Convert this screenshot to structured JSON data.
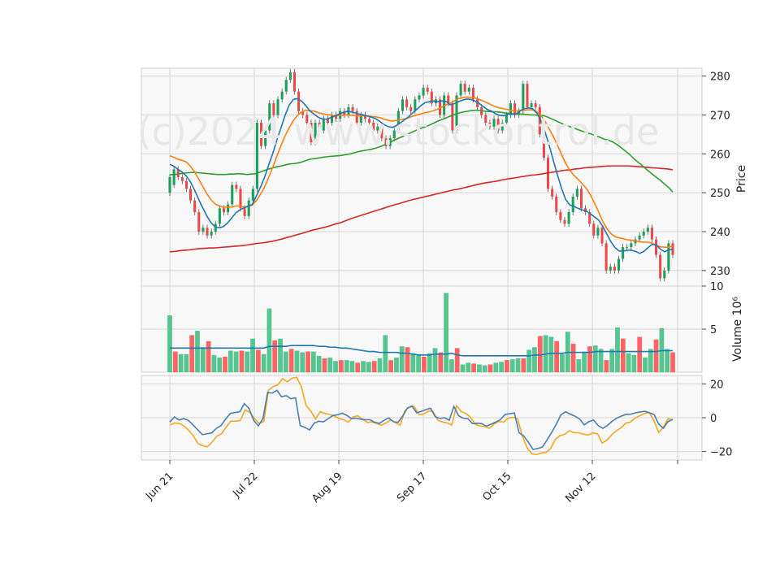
{
  "chart_data": {
    "type": "candlestick",
    "watermark": "(c)2024 www.stockontrol.de",
    "x_tick_labels": [
      "Jun 21",
      "Jul 22",
      "Aug 19",
      "Sep 17",
      "Oct 15",
      "Nov 12"
    ],
    "price_panel": {
      "ylabel": "Price",
      "ylim": [
        226,
        282
      ],
      "yticks": [
        230,
        240,
        250,
        260,
        270,
        280
      ],
      "candles": [
        [
          250,
          254
        ],
        [
          252,
          256
        ],
        [
          256,
          254
        ],
        [
          254,
          253
        ],
        [
          253,
          251
        ],
        [
          251,
          248
        ],
        [
          248,
          245
        ],
        [
          245,
          240
        ],
        [
          240,
          241
        ],
        [
          241,
          239
        ],
        [
          239,
          240
        ],
        [
          240,
          242
        ],
        [
          242,
          246
        ],
        [
          246,
          245
        ],
        [
          245,
          247
        ],
        [
          247,
          252
        ],
        [
          252,
          251
        ],
        [
          251,
          246
        ],
        [
          246,
          244
        ],
        [
          244,
          248
        ],
        [
          248,
          251
        ],
        [
          251,
          268
        ],
        [
          268,
          262
        ],
        [
          262,
          266
        ],
        [
          266,
          273
        ],
        [
          273,
          270
        ],
        [
          270,
          274
        ],
        [
          274,
          276
        ],
        [
          276,
          279
        ],
        [
          279,
          281
        ],
        [
          281,
          276
        ],
        [
          276,
          271
        ],
        [
          271,
          270
        ],
        [
          270,
          268
        ],
        [
          268,
          263
        ],
        [
          263,
          268
        ],
        [
          268,
          266
        ],
        [
          266,
          269
        ],
        [
          269,
          268
        ],
        [
          268,
          270
        ],
        [
          270,
          269
        ],
        [
          269,
          271
        ],
        [
          271,
          270
        ],
        [
          270,
          272
        ],
        [
          272,
          271
        ],
        [
          271,
          268
        ],
        [
          268,
          270
        ],
        [
          270,
          269
        ],
        [
          269,
          268
        ],
        [
          268,
          266
        ],
        [
          266,
          267
        ],
        [
          267,
          264
        ],
        [
          264,
          262
        ],
        [
          262,
          264
        ],
        [
          264,
          266
        ],
        [
          266,
          271
        ],
        [
          271,
          274
        ],
        [
          274,
          272
        ],
        [
          272,
          271
        ],
        [
          271,
          274
        ],
        [
          274,
          275
        ],
        [
          275,
          277
        ],
        [
          277,
          276
        ],
        [
          276,
          273
        ],
        [
          273,
          274
        ],
        [
          274,
          270
        ],
        [
          270,
          275
        ],
        [
          275,
          273
        ],
        [
          273,
          266
        ],
        [
          266,
          275
        ],
        [
          275,
          278
        ],
        [
          278,
          276
        ],
        [
          276,
          277
        ],
        [
          277,
          274
        ],
        [
          274,
          272
        ],
        [
          272,
          270
        ],
        [
          270,
          268
        ],
        [
          268,
          267
        ],
        [
          267,
          269
        ],
        [
          269,
          266
        ],
        [
          266,
          268
        ],
        [
          268,
          270
        ],
        [
          270,
          273
        ],
        [
          273,
          270
        ],
        [
          270,
          271
        ],
        [
          271,
          278
        ],
        [
          278,
          272
        ],
        [
          272,
          273
        ],
        [
          273,
          272
        ],
        [
          272,
          265
        ],
        [
          265,
          259
        ],
        [
          259,
          251
        ],
        [
          251,
          249
        ],
        [
          249,
          245
        ],
        [
          245,
          243
        ],
        [
          243,
          242
        ],
        [
          242,
          245
        ],
        [
          245,
          249
        ],
        [
          249,
          251
        ],
        [
          251,
          246
        ],
        [
          246,
          245
        ],
        [
          245,
          242
        ],
        [
          242,
          239
        ],
        [
          239,
          241
        ],
        [
          241,
          237
        ],
        [
          237,
          230
        ],
        [
          230,
          231
        ],
        [
          231,
          230
        ],
        [
          230,
          233
        ],
        [
          233,
          236
        ],
        [
          236,
          236
        ],
        [
          236,
          237
        ],
        [
          237,
          238
        ],
        [
          238,
          239
        ],
        [
          239,
          240
        ],
        [
          240,
          241
        ],
        [
          241,
          238
        ],
        [
          238,
          234
        ],
        [
          234,
          228
        ],
        [
          228,
          230
        ],
        [
          230,
          237
        ],
        [
          237,
          234
        ]
      ],
      "ma_blue": [
        257.3,
        256.8,
        256.0,
        255.3,
        254.3,
        252.8,
        250.7,
        248.3,
        246.1,
        244.0,
        242.3,
        241.2,
        241.0,
        241.3,
        242.2,
        243.5,
        244.8,
        245.6,
        246.1,
        246.5,
        247.0,
        249.2,
        251.4,
        254.0,
        257.2,
        260.2,
        263.6,
        266.8,
        270.0,
        272.6,
        274.0,
        274.2,
        273.5,
        272.4,
        271.0,
        270.2,
        269.4,
        269.0,
        268.9,
        269.3,
        269.7,
        270.2,
        270.6,
        270.9,
        270.8,
        270.5,
        270.2,
        270.0,
        269.7,
        269.4,
        269.0,
        268.3,
        267.5,
        267.0,
        266.8,
        267.3,
        268.0,
        268.8,
        269.6,
        270.6,
        271.5,
        272.5,
        273.2,
        273.4,
        273.6,
        273.4,
        273.6,
        273.5,
        272.6,
        272.9,
        273.4,
        273.8,
        274.1,
        274.0,
        273.6,
        273.0,
        272.2,
        271.4,
        271.0,
        270.3,
        269.9,
        269.8,
        270.2,
        270.2,
        270.2,
        271.1,
        271.6,
        271.8,
        271.6,
        270.5,
        268.6,
        265.7,
        262.3,
        258.4,
        254.7,
        251.2,
        248.3,
        246.9,
        246.5,
        246.0,
        245.6,
        245.3,
        244.6,
        243.8,
        243.0,
        241.4,
        239.4,
        237.4,
        235.9,
        235.0,
        235.0,
        235.2,
        235.2,
        234.9,
        234.4,
        234.9,
        235.9,
        236.7,
        236.6,
        235.5,
        234.8,
        235.3,
        235.5
      ],
      "ma_orange": [
        259.5,
        259.1,
        258.6,
        258.3,
        257.9,
        256.8,
        255.4,
        253.5,
        251.6,
        249.7,
        248.2,
        247.1,
        246.6,
        246.3,
        246.3,
        246.3,
        246.6,
        246.6,
        246.3,
        246.5,
        246.8,
        248.0,
        249.6,
        251.5,
        254.0,
        256.6,
        259.5,
        262.2,
        264.7,
        266.8,
        268.6,
        269.9,
        270.8,
        271.2,
        271.1,
        271.0,
        270.6,
        270.3,
        270.1,
        270.0,
        269.8,
        269.9,
        269.9,
        270.0,
        269.9,
        269.9,
        269.8,
        269.8,
        269.7,
        269.6,
        269.5,
        269.3,
        268.9,
        268.6,
        268.4,
        268.6,
        268.8,
        269.0,
        269.3,
        269.7,
        270.0,
        270.3,
        270.6,
        270.8,
        271.1,
        271.5,
        272.0,
        272.6,
        273.0,
        273.6,
        274.2,
        274.4,
        274.6,
        274.5,
        274.4,
        274.0,
        273.6,
        273.1,
        272.6,
        272.1,
        271.8,
        271.6,
        271.4,
        271.1,
        271.0,
        271.1,
        271.2,
        271.3,
        271.3,
        270.8,
        269.9,
        268.4,
        266.5,
        264.5,
        262.3,
        259.9,
        257.6,
        255.8,
        254.5,
        253.5,
        252.3,
        251.2,
        249.5,
        247.4,
        245.1,
        242.7,
        240.8,
        239.5,
        238.7,
        238.4,
        238.2,
        237.9,
        237.8,
        237.6,
        237.4,
        237.3,
        237.3,
        237.0,
        236.5,
        236.1,
        236.0,
        236.0,
        236.3
      ],
      "ma_green": [
        254.6,
        254.7,
        254.8,
        255.0,
        255.1,
        255.2,
        255.2,
        255.1,
        255.0,
        254.9,
        254.8,
        254.7,
        254.7,
        254.7,
        254.8,
        254.8,
        254.9,
        254.8,
        254.7,
        254.8,
        254.9,
        255.3,
        255.7,
        256.1,
        256.4,
        256.7,
        256.9,
        257.2,
        257.4,
        257.5,
        257.7,
        258.0,
        258.4,
        258.7,
        258.8,
        259.0,
        259.2,
        259.3,
        259.4,
        259.5,
        259.6,
        259.8,
        260.0,
        260.3,
        260.6,
        260.8,
        261.0,
        261.2,
        261.5,
        261.9,
        262.3,
        262.8,
        263.4,
        263.9,
        264.4,
        264.9,
        265.4,
        265.9,
        266.4,
        266.8,
        267.2,
        267.7,
        268.2,
        268.7,
        269.1,
        269.6,
        270.0,
        270.4,
        270.7,
        270.9,
        271.1,
        271.2,
        271.2,
        271.0,
        270.9,
        270.8,
        270.8,
        270.7,
        270.5,
        270.4,
        270.3,
        270.2,
        270.2,
        270.1,
        270.0,
        270.0,
        269.9,
        269.8,
        269.4,
        268.9,
        268.4,
        267.9,
        267.4,
        267.0,
        266.6,
        266.2,
        265.8,
        265.4,
        265.1,
        264.7,
        264.3,
        263.8,
        263.5,
        263.1,
        262.4,
        261.6,
        260.7,
        259.8,
        258.7,
        257.8,
        256.9,
        255.9,
        255.0,
        254.1,
        253.3,
        252.3,
        251.4,
        250.2
      ],
      "ma_red": [
        234.8,
        234.9,
        235.1,
        235.2,
        235.3,
        235.5,
        235.6,
        235.7,
        235.8,
        235.8,
        235.9,
        236.0,
        236.1,
        236.2,
        236.3,
        236.4,
        236.6,
        236.8,
        237.0,
        237.1,
        237.3,
        237.5,
        237.8,
        238.1,
        238.5,
        238.8,
        239.2,
        239.5,
        239.9,
        240.3,
        240.6,
        240.9,
        241.2,
        241.6,
        242.0,
        242.3,
        242.8,
        243.3,
        243.7,
        244.1,
        244.5,
        244.9,
        245.3,
        245.7,
        246.1,
        246.5,
        246.9,
        247.2,
        247.6,
        248.0,
        248.3,
        248.6,
        248.9,
        249.2,
        249.5,
        249.8,
        250.1,
        250.4,
        250.7,
        250.9,
        251.2,
        251.5,
        251.8,
        252.1,
        252.4,
        252.6,
        252.8,
        253.0,
        253.3,
        253.5,
        253.7,
        253.9,
        254.1,
        254.3,
        254.5,
        254.6,
        254.8,
        255.0,
        255.2,
        255.4,
        255.6,
        255.8,
        255.9,
        256.1,
        256.2,
        256.4,
        256.5,
        256.6,
        256.7,
        256.8,
        256.9,
        256.9,
        256.9,
        256.9,
        256.9,
        256.8,
        256.7,
        256.6,
        256.5,
        256.4,
        256.3,
        256.2,
        256.1,
        255.9
      ]
    },
    "volume_panel": {
      "ylabel": "Volume  10⁶",
      "ylim": [
        0,
        10
      ],
      "yticks": [
        5,
        10
      ],
      "bars": [
        6.6,
        2.4,
        2.1,
        2.1,
        4.3,
        4.8,
        2.9,
        3.6,
        2.0,
        1.7,
        1.8,
        2.5,
        2.4,
        2.5,
        2.4,
        3.9,
        2.6,
        2.1,
        7.4,
        3.7,
        3.9,
        2.4,
        2.7,
        2.5,
        2.3,
        2.4,
        2.4,
        1.9,
        1.6,
        1.7,
        1.3,
        1.4,
        1.4,
        1.3,
        1.1,
        1.3,
        1.2,
        1.3,
        1.6,
        4.3,
        1.4,
        1.7,
        3.0,
        2.9,
        2.2,
        2.0,
        1.8,
        2.2,
        2.8,
        2.3,
        9.2,
        1.5,
        2.8,
        0.9,
        1.1,
        1.0,
        0.9,
        0.8,
        0.9,
        1.1,
        1.2,
        1.4,
        1.5,
        1.6,
        1.6,
        2.6,
        2.9,
        4.2,
        4.3,
        4.1,
        3.6,
        2.1,
        4.7,
        3.3,
        1.5,
        2.4,
        3.0,
        3.1,
        2.7,
        1.4,
        2.7,
        5.2,
        3.9,
        2.2,
        2.0,
        4.1,
        1.7,
        2.7,
        3.8,
        5.1,
        2.7,
        2.3
      ],
      "avg": [
        2.8,
        2.8,
        2.8,
        2.8,
        2.8,
        2.8,
        2.8,
        2.8,
        2.8,
        2.8,
        2.8,
        2.8,
        2.8,
        2.8,
        2.8,
        2.8,
        2.8,
        2.8,
        3.0,
        3.0,
        3.0,
        3.0,
        3.1,
        3.1,
        3.1,
        3.1,
        3.1,
        3.0,
        3.0,
        2.9,
        2.9,
        2.8,
        2.8,
        2.7,
        2.6,
        2.5,
        2.4,
        2.4,
        2.3,
        2.3,
        2.3,
        2.3,
        2.2,
        2.2,
        2.1,
        2.0,
        2.0,
        2.0,
        2.1,
        2.1,
        2.1,
        2.2,
        2.0,
        1.9,
        1.9,
        1.9,
        1.9,
        1.9,
        1.9,
        1.9,
        1.9,
        1.9,
        1.9,
        1.9,
        1.9,
        1.9,
        2.0,
        2.0,
        2.1,
        2.2,
        2.2,
        2.2,
        2.3,
        2.3,
        2.3,
        2.3,
        2.3,
        2.4,
        2.4,
        2.4,
        2.4,
        2.4,
        2.4,
        2.4,
        2.4,
        2.4,
        2.4,
        2.4,
        2.4,
        2.5,
        2.5,
        2.5
      ],
      "colors": {
        "up": "#4cc38a",
        "down": "#ff5c5c"
      }
    },
    "oscillator_panel": {
      "ylim": [
        -25,
        25
      ],
      "yticks": [
        -20,
        0,
        20
      ],
      "steel": [
        -2.6,
        0.5,
        -1.4,
        -0.5,
        -1.6,
        -4.3,
        -7.2,
        -10.0,
        -9.5,
        -9.0,
        -6.3,
        -4.6,
        -0.8,
        2.6,
        3.1,
        3.4,
        8.3,
        5.5,
        -1.5,
        -4.8,
        -0.5,
        14.9,
        14.6,
        16.2,
        12.4,
        13.1,
        11.2,
        11.8,
        -4.6,
        -5.7,
        -7.3,
        -3.2,
        -2.1,
        -2.4,
        -0.6,
        1.3,
        1.7,
        2.7,
        1.4,
        -0.5,
        -0.3,
        -0.9,
        -1.2,
        -1.2,
        -2.7,
        -3.3,
        -1.6,
        -0.1,
        -2.4,
        -2.7,
        0.9,
        5.7,
        6.9,
        2.9,
        3.7,
        4.8,
        5.6,
        0.6,
        -0.4,
        0.0,
        -1.5,
        6.7,
        1.2,
        -0.3,
        -0.6,
        -3.5,
        -3.2,
        -3.5,
        -5.0,
        -3.8,
        -2.6,
        -1.1,
        1.9,
        2.4,
        2.8,
        -8.9,
        -10.8,
        -14.5,
        -18.8,
        -18.2,
        -17.4,
        -13.2,
        -8.7,
        -3.8,
        1.8,
        3.5,
        2.1,
        0.9,
        -0.8,
        -4.2,
        -2.3,
        -1.4,
        -4.7,
        -6.3,
        -4.5,
        -2.1,
        -0.2,
        1.0,
        2.0,
        2.1,
        2.9,
        3.4,
        3.8,
        2.9,
        1.9,
        -3.9,
        -6.2,
        -2.2,
        -1.0
      ],
      "orange": [
        -4.4,
        -3.1,
        -3.4,
        -4.8,
        -7.4,
        -10.6,
        -15.3,
        -16.6,
        -17.2,
        -14.4,
        -10.9,
        -9.5,
        -5.5,
        -2.0,
        -2.0,
        -1.7,
        4.6,
        3.3,
        -0.5,
        -3.5,
        -2.2,
        16.3,
        18.4,
        19.5,
        23.2,
        21.2,
        23.4,
        23.9,
        18.3,
        7.2,
        3.9,
        -0.7,
        3.6,
        2.5,
        2.0,
        1.0,
        -0.5,
        -1.2,
        -2.6,
        0.5,
        1.1,
        -0.8,
        -2.8,
        -2.5,
        -3.4,
        -4.4,
        -3.1,
        -1.3,
        -2.9,
        -4.4,
        4.1,
        6.4,
        6.7,
        1.8,
        2.2,
        3.9,
        3.6,
        -1.4,
        -2.6,
        -3.0,
        -4.3,
        7.1,
        3.6,
        2.5,
        0.2,
        -3.9,
        -4.9,
        -5.2,
        -6.2,
        -3.7,
        -2.2,
        -2.6,
        -0.2,
        0.2,
        -0.7,
        -10.8,
        -17.7,
        -21.3,
        -21.8,
        -20.9,
        -20.6,
        -18.3,
        -12.9,
        -10.6,
        -9.8,
        -7.7,
        -8.9,
        -8.9,
        -9.7,
        -10.3,
        -8.9,
        -9.6,
        -15.0,
        -13.2,
        -10.1,
        -7.7,
        -6.0,
        -3.2,
        -2.6,
        -0.2,
        1.2,
        2.5,
        3.1,
        -1.7,
        -8.8,
        -5.6,
        -0.6,
        -1.4
      ],
      "colors": {
        "steel": "#4a7fb0",
        "orange": "#f5a623"
      }
    },
    "line_colors": {
      "ma_blue": "#1f77b4",
      "ma_orange": "#ff7f0e",
      "ma_green": "#2ca02c",
      "ma_red": "#d62728",
      "candle_up": "#1aa05a",
      "candle_down": "#e84a4a"
    }
  }
}
